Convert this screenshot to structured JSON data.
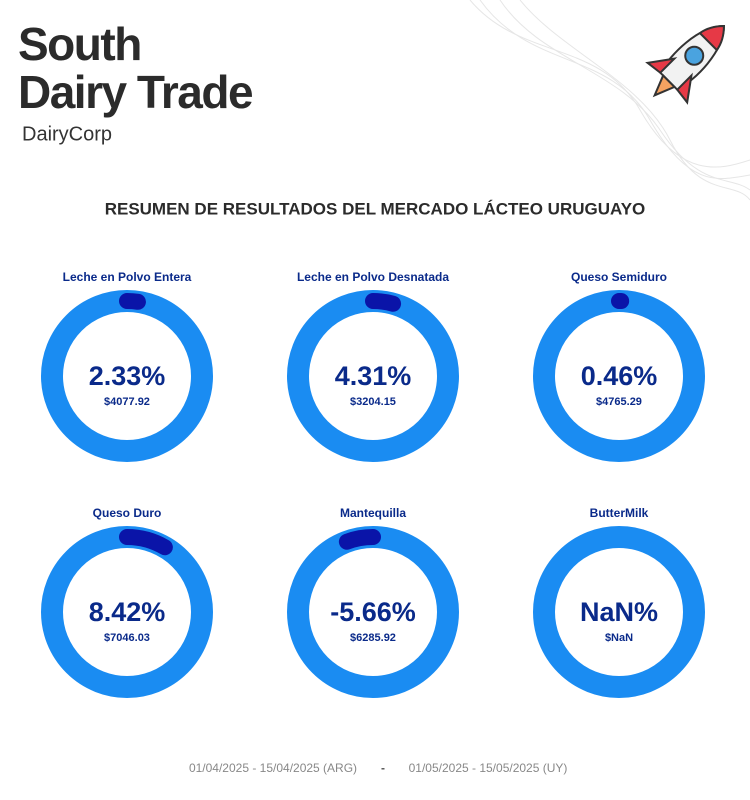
{
  "header": {
    "brand_line1": "South",
    "brand_line2": "Dairy Trade",
    "company": "DairyCorp"
  },
  "title": "RESUMEN DE RESULTADOS DEL MERCADO LÁCTEO URUGUAYO",
  "gauges": [
    {
      "name": "Leche en Polvo Entera",
      "value": 2.33,
      "value_label": "2.33%",
      "price": "$4077.92"
    },
    {
      "name": "Leche en Polvo Desnatada",
      "value": 4.31,
      "value_label": "4.31%",
      "price": "$3204.15"
    },
    {
      "name": "Queso Semiduro",
      "value": 0.46,
      "value_label": "0.46%",
      "price": "$4765.29"
    },
    {
      "name": "Queso Duro",
      "value": 8.42,
      "value_label": "8.42%",
      "price": "$7046.03"
    },
    {
      "name": "Mantequilla",
      "value": -5.66,
      "value_label": "-5.66%",
      "price": "$6285.92"
    },
    {
      "name": "ButterMilk",
      "value": null,
      "value_label": "NaN%",
      "price": "$NaN"
    }
  ],
  "footer": {
    "period_arg": "01/04/2025 - 15/04/2025 (ARG)",
    "separator": "-",
    "period_uy": "01/05/2025 - 15/05/2025 (UY)"
  }
}
